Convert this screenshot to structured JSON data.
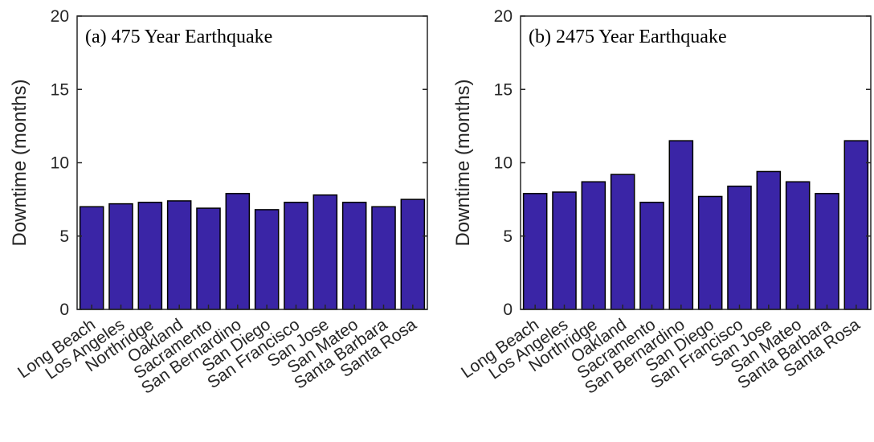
{
  "figure": {
    "bar_color": "#3a25a6",
    "bar_edge_color": "#000000",
    "axis_color": "#262626"
  },
  "chart_data": [
    {
      "type": "bar",
      "title": "(a) 475 Year Earthquake",
      "xlabel": "",
      "ylabel": "Downtime (months)",
      "ylim": [
        0,
        20
      ],
      "yticks": [
        "0",
        "5",
        "10",
        "15",
        "20"
      ],
      "grid": false,
      "categories": [
        "Long Beach",
        "Los Angeles",
        "Northridge",
        "Oakland",
        "Sacramento",
        "San Bernardino",
        "San Diego",
        "San Francisco",
        "San Jose",
        "San Mateo",
        "Santa Barbara",
        "Santa Rosa"
      ],
      "values": [
        7.0,
        7.2,
        7.3,
        7.4,
        6.9,
        7.9,
        6.8,
        7.3,
        7.8,
        7.3,
        7.0,
        7.5
      ]
    },
    {
      "type": "bar",
      "title": "(b) 2475 Year Earthquake",
      "xlabel": "",
      "ylabel": "Downtime (months)",
      "ylim": [
        0,
        20
      ],
      "yticks": [
        "0",
        "5",
        "10",
        "15",
        "20"
      ],
      "grid": false,
      "categories": [
        "Long Beach",
        "Los Angeles",
        "Northridge",
        "Oakland",
        "Sacramento",
        "San Bernardino",
        "San Diego",
        "San Francisco",
        "San Jose",
        "San Mateo",
        "Santa Barbara",
        "Santa Rosa"
      ],
      "values": [
        7.9,
        8.0,
        8.7,
        9.2,
        7.3,
        11.5,
        7.7,
        8.4,
        9.4,
        8.7,
        7.9,
        11.5
      ]
    }
  ]
}
